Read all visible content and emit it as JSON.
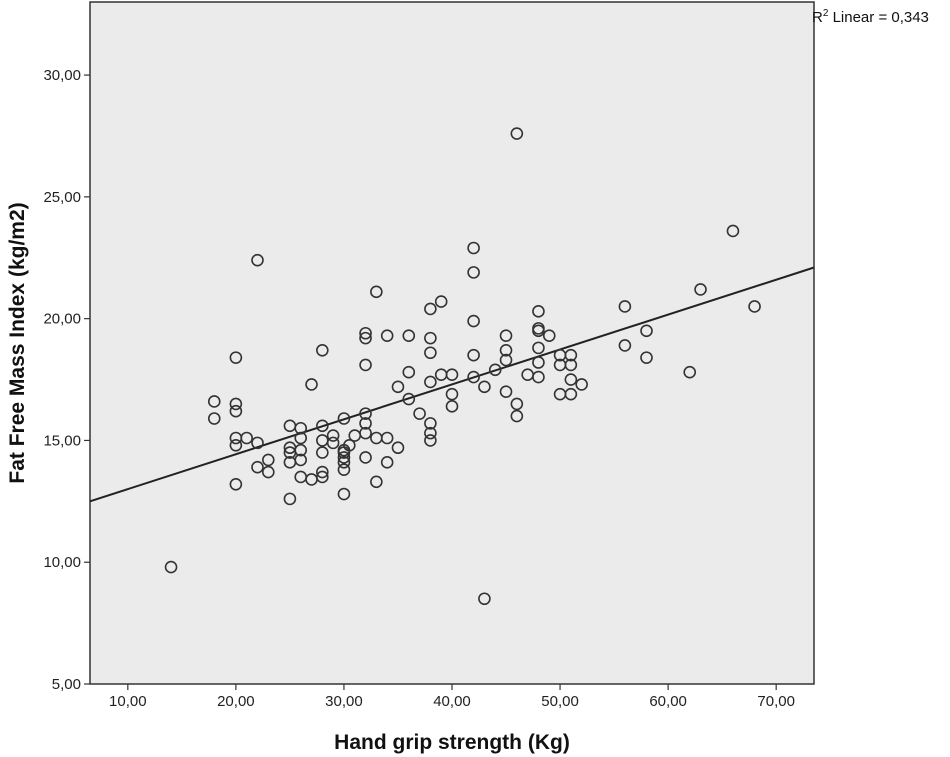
{
  "chart_data": {
    "type": "scatter",
    "xlabel": "Hand grip strength (Kg)",
    "ylabel": "Fat Free Mass Index (kg/m2)",
    "xlim": [
      6.5,
      73.5
    ],
    "ylim": [
      5,
      33
    ],
    "x_ticks": [
      "10,00",
      "20,00",
      "30,00",
      "40,00",
      "50,00",
      "60,00",
      "70,00"
    ],
    "y_ticks": [
      "5,00",
      "10,00",
      "15,00",
      "20,00",
      "25,00",
      "30,00"
    ],
    "annotation": {
      "r2_prefix": "R",
      "r2_sup": "2",
      "r2_text": " Linear = 0,343"
    },
    "fit_line": {
      "x": [
        6.5,
        73.5
      ],
      "y": [
        12.5,
        22.1
      ]
    },
    "grid": false,
    "colors": {
      "plot_background": "#ebebeb",
      "marker": "#333333",
      "line": "#222222"
    },
    "points": [
      [
        14,
        9.8
      ],
      [
        18,
        16.6
      ],
      [
        18,
        15.9
      ],
      [
        20,
        18.4
      ],
      [
        20,
        16.5
      ],
      [
        20,
        16.2
      ],
      [
        20,
        15.1
      ],
      [
        20,
        14.8
      ],
      [
        20,
        13.2
      ],
      [
        21,
        15.1
      ],
      [
        22,
        22.4
      ],
      [
        22,
        14.9
      ],
      [
        22,
        13.9
      ],
      [
        23,
        14.2
      ],
      [
        23,
        13.7
      ],
      [
        25,
        15.6
      ],
      [
        25,
        14.7
      ],
      [
        25,
        14.5
      ],
      [
        25,
        14.1
      ],
      [
        25,
        12.6
      ],
      [
        26,
        15.5
      ],
      [
        26,
        15.1
      ],
      [
        26,
        14.6
      ],
      [
        26,
        14.2
      ],
      [
        26,
        13.5
      ],
      [
        27,
        17.3
      ],
      [
        27,
        13.4
      ],
      [
        28,
        18.7
      ],
      [
        28,
        15.6
      ],
      [
        28,
        15.0
      ],
      [
        28,
        14.5
      ],
      [
        28,
        13.7
      ],
      [
        28,
        13.5
      ],
      [
        29,
        15.2
      ],
      [
        29,
        14.9
      ],
      [
        30,
        15.9
      ],
      [
        30,
        14.6
      ],
      [
        30,
        14.5
      ],
      [
        30,
        14.3
      ],
      [
        30,
        14.1
      ],
      [
        30,
        13.8
      ],
      [
        30,
        12.8
      ],
      [
        30.5,
        14.8
      ],
      [
        31,
        15.2
      ],
      [
        32,
        19.4
      ],
      [
        32,
        19.2
      ],
      [
        32,
        18.1
      ],
      [
        32,
        16.1
      ],
      [
        32,
        15.7
      ],
      [
        32,
        15.3
      ],
      [
        32,
        14.3
      ],
      [
        33,
        21.1
      ],
      [
        33,
        15.1
      ],
      [
        33,
        13.3
      ],
      [
        34,
        19.3
      ],
      [
        34,
        15.1
      ],
      [
        34,
        14.1
      ],
      [
        35,
        17.2
      ],
      [
        35,
        14.7
      ],
      [
        36,
        19.3
      ],
      [
        36,
        17.8
      ],
      [
        36,
        16.7
      ],
      [
        37,
        16.1
      ],
      [
        38,
        20.4
      ],
      [
        38,
        19.2
      ],
      [
        38,
        18.6
      ],
      [
        38,
        17.4
      ],
      [
        38,
        15.7
      ],
      [
        38,
        15.3
      ],
      [
        38,
        15.0
      ],
      [
        39,
        20.7
      ],
      [
        39,
        17.7
      ],
      [
        40,
        17.7
      ],
      [
        40,
        16.9
      ],
      [
        40,
        16.4
      ],
      [
        42,
        22.9
      ],
      [
        42,
        21.9
      ],
      [
        42,
        19.9
      ],
      [
        42,
        18.5
      ],
      [
        42,
        17.6
      ],
      [
        43,
        17.2
      ],
      [
        43,
        8.5
      ],
      [
        44,
        17.9
      ],
      [
        45,
        19.3
      ],
      [
        45,
        18.7
      ],
      [
        45,
        18.3
      ],
      [
        45,
        17.0
      ],
      [
        46,
        27.6
      ],
      [
        46,
        16.5
      ],
      [
        46,
        16.0
      ],
      [
        47,
        17.7
      ],
      [
        48,
        20.3
      ],
      [
        48,
        19.6
      ],
      [
        48,
        19.5
      ],
      [
        48,
        18.8
      ],
      [
        48,
        18.2
      ],
      [
        48,
        17.6
      ],
      [
        49,
        19.3
      ],
      [
        50,
        18.5
      ],
      [
        50,
        18.1
      ],
      [
        50,
        16.9
      ],
      [
        51,
        18.5
      ],
      [
        51,
        18.1
      ],
      [
        51,
        17.5
      ],
      [
        51,
        16.9
      ],
      [
        52,
        17.3
      ],
      [
        56,
        20.5
      ],
      [
        56,
        18.9
      ],
      [
        58,
        19.5
      ],
      [
        58,
        18.4
      ],
      [
        62,
        17.8
      ],
      [
        63,
        21.2
      ],
      [
        66,
        23.6
      ],
      [
        68,
        20.5
      ]
    ]
  }
}
